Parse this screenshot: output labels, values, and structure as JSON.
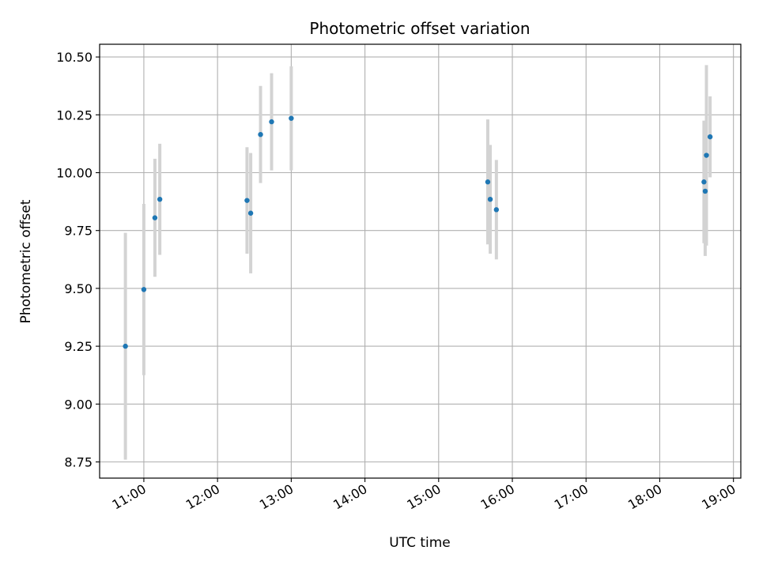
{
  "chart_data": {
    "type": "scatter",
    "title": "Photometric offset variation",
    "xlabel": "UTC time",
    "ylabel": "Photometric offset",
    "xlim": [
      "10:24",
      "19:06"
    ],
    "ylim": [
      8.68,
      10.555
    ],
    "x_ticks": [
      "11:00",
      "12:00",
      "13:00",
      "14:00",
      "15:00",
      "16:00",
      "17:00",
      "18:00",
      "19:00"
    ],
    "y_ticks": [
      "8.75",
      "9.00",
      "9.25",
      "9.50",
      "9.75",
      "10.00",
      "10.25",
      "10.50"
    ],
    "grid": true,
    "legend": "none",
    "series": [
      {
        "marker_color": "#1f77b4",
        "errorbar_color": "#d3d3d3",
        "points": [
          {
            "x": "10:45",
            "y": 9.25,
            "err": 0.49
          },
          {
            "x": "11:00",
            "y": 9.495,
            "err": 0.37
          },
          {
            "x": "11:09",
            "y": 9.805,
            "err": 0.255
          },
          {
            "x": "11:13",
            "y": 9.885,
            "err": 0.24
          },
          {
            "x": "12:24",
            "y": 9.88,
            "err": 0.23
          },
          {
            "x": "12:27",
            "y": 9.825,
            "err": 0.26
          },
          {
            "x": "12:35",
            "y": 10.165,
            "err": 0.21
          },
          {
            "x": "12:44",
            "y": 10.22,
            "err": 0.21
          },
          {
            "x": "13:00",
            "y": 10.235,
            "err": 0.225
          },
          {
            "x": "15:40",
            "y": 9.96,
            "err": 0.27
          },
          {
            "x": "15:42",
            "y": 9.885,
            "err": 0.235
          },
          {
            "x": "15:47",
            "y": 9.84,
            "err": 0.215
          },
          {
            "x": "18:36",
            "y": 9.96,
            "err": 0.265
          },
          {
            "x": "18:37",
            "y": 9.92,
            "err": 0.28
          },
          {
            "x": "18:38",
            "y": 10.075,
            "err": 0.39
          },
          {
            "x": "18:41",
            "y": 10.155,
            "err": 0.175
          }
        ]
      }
    ]
  }
}
